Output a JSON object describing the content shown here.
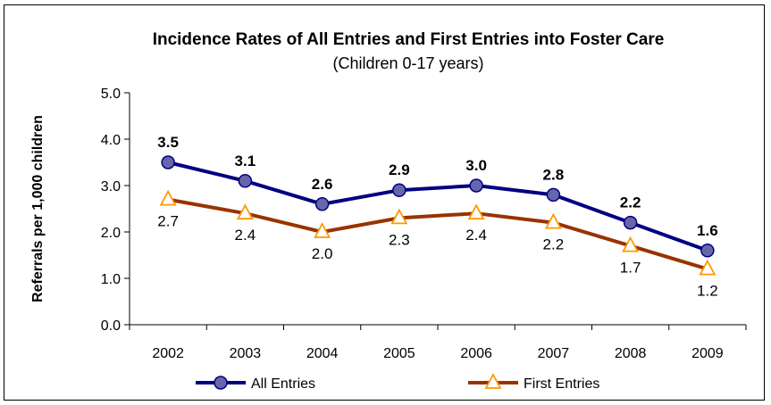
{
  "chart_data": {
    "type": "line",
    "title": "Incidence Rates of All Entries and First Entries into Foster Care",
    "subtitle": "(Children 0-17 years)",
    "ylabel": "Referrals per 1,000 children",
    "xlabel": "",
    "categories": [
      "2002",
      "2003",
      "2004",
      "2005",
      "2006",
      "2007",
      "2008",
      "2009"
    ],
    "ylim": [
      0,
      5
    ],
    "yticks": [
      "0.0",
      "1.0",
      "2.0",
      "3.0",
      "4.0",
      "5.0"
    ],
    "grid": false,
    "legend_position": "bottom",
    "series": [
      {
        "name": "All Entries",
        "values": [
          3.5,
          3.1,
          2.6,
          2.9,
          3.0,
          2.8,
          2.2,
          1.6
        ],
        "labels": [
          "3.5",
          "3.1",
          "2.6",
          "2.9",
          "3.0",
          "2.8",
          "2.2",
          "1.6"
        ],
        "line_color": "#000080",
        "marker": "circle",
        "marker_color": "#6666aa"
      },
      {
        "name": "First Entries",
        "values": [
          2.7,
          2.4,
          2.0,
          2.3,
          2.4,
          2.2,
          1.7,
          1.2
        ],
        "labels": [
          "2.7",
          "2.4",
          "2.0",
          "2.3",
          "2.4",
          "2.2",
          "1.7",
          "1.2"
        ],
        "line_color": "#993300",
        "marker": "triangle",
        "marker_color": "#ff9900"
      }
    ]
  }
}
